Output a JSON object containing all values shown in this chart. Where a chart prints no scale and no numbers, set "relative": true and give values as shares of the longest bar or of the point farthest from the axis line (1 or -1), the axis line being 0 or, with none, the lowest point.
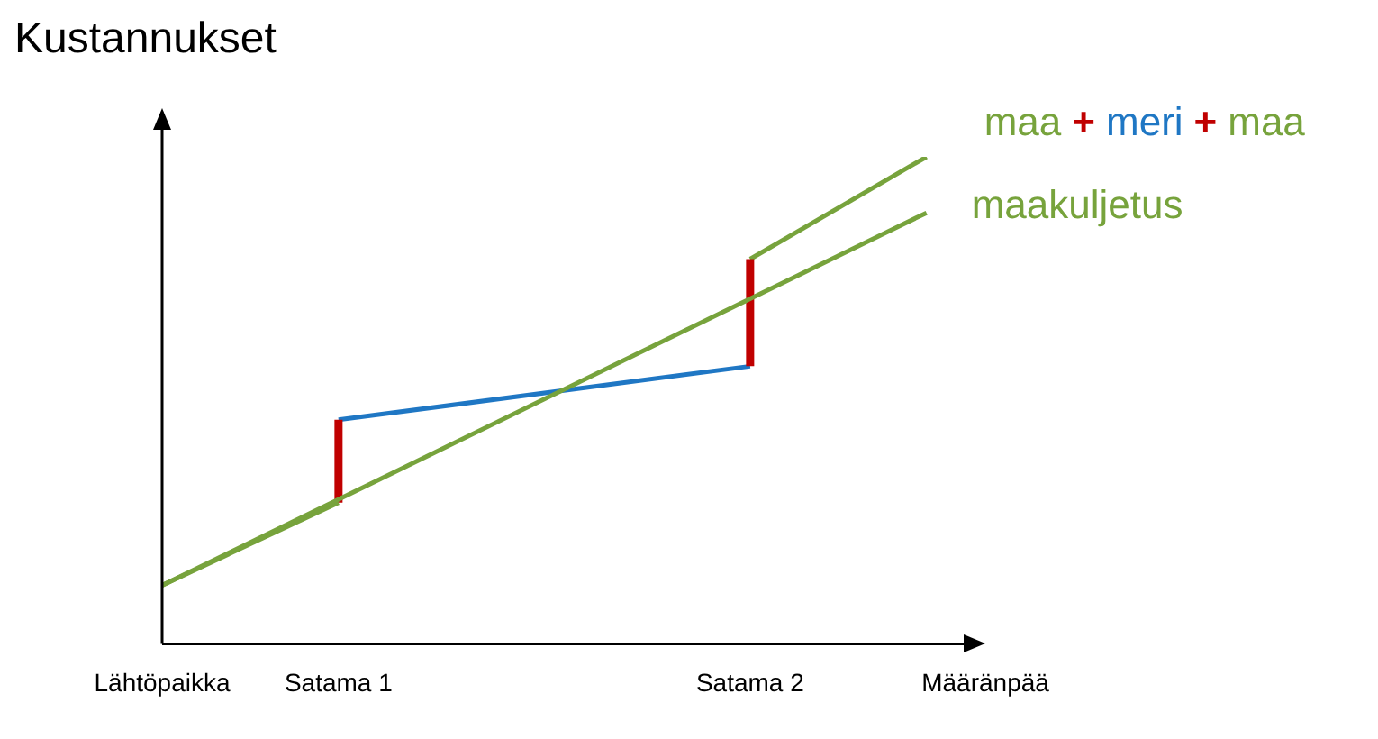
{
  "chart_data": {
    "type": "line",
    "ylabel": "Kustannukset",
    "relative": true,
    "categories": [
      "Lähtöpaikka",
      null,
      null,
      "Satama 1",
      null,
      null,
      null,
      null,
      null,
      null,
      "Satama 2",
      null,
      null,
      null,
      "Määränpää"
    ],
    "series": [
      {
        "name": "maakuljetus",
        "color": "#77a33c",
        "values": [
          0.12,
          null,
          null,
          null,
          null,
          null,
          null,
          null,
          null,
          null,
          null,
          null,
          null,
          0.885,
          null
        ]
      },
      {
        "color": "#77a33c",
        "values": [
          0.12,
          null,
          null,
          0.29,
          null,
          null,
          null,
          null,
          null,
          null,
          null,
          null,
          null,
          null,
          null
        ]
      },
      {
        "color": "#c00000",
        "x": [
          "Satama 1",
          "Satama 1",
          "Satama 2",
          "Satama 2",
          "Satama 2"
        ],
        "values": [
          0.29,
          0.46,
          null,
          0.57,
          0.79
        ]
      },
      {
        "color": "#1f77c4",
        "values": [
          null,
          null,
          null,
          0.46,
          null,
          null,
          null,
          null,
          null,
          null,
          0.57,
          null,
          null,
          null,
          null
        ]
      },
      {
        "color": "#77a33c",
        "values": [
          null,
          null,
          null,
          null,
          null,
          null,
          null,
          null,
          null,
          null,
          0.79,
          null,
          null,
          1,
          null
        ]
      }
    ],
    "annotations": [
      "maa + meri + maa"
    ],
    "grid": false,
    "legend": "top right",
    "marker": "none",
    "line_style": "solid"
  }
}
